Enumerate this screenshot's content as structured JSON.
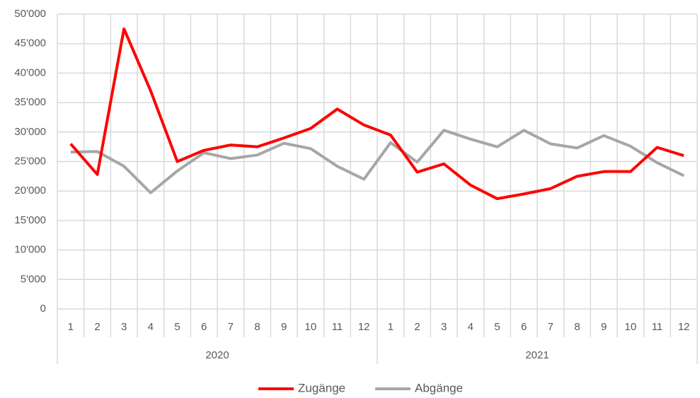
{
  "chart_data": {
    "type": "line",
    "categories": [
      "1",
      "2",
      "3",
      "4",
      "5",
      "6",
      "7",
      "8",
      "9",
      "10",
      "11",
      "12",
      "1",
      "2",
      "3",
      "4",
      "5",
      "6",
      "7",
      "8",
      "9",
      "10",
      "11",
      "12"
    ],
    "category_groups": [
      "2020",
      "2021"
    ],
    "series": [
      {
        "name": "Zugänge",
        "color": "#ff0000",
        "values": [
          28000,
          22800,
          47500,
          37000,
          25000,
          26900,
          27800,
          27500,
          29000,
          30600,
          33900,
          31200,
          29500,
          23200,
          24600,
          21000,
          18700,
          19500,
          20400,
          22500,
          23300,
          23300,
          27400,
          26000
        ]
      },
      {
        "name": "Abgänge",
        "color": "#a6a6a6",
        "values": [
          26600,
          26700,
          24200,
          19700,
          23400,
          26500,
          25500,
          26100,
          28100,
          27200,
          24200,
          22000,
          28200,
          24900,
          30300,
          28800,
          27500,
          30300,
          28000,
          27300,
          29400,
          27600,
          24800,
          22600
        ]
      }
    ],
    "ylim": [
      0,
      50000
    ],
    "yticks": [
      0,
      {
        "value": 5000,
        "label": "5'000"
      },
      {
        "value": 10000,
        "label": "10'000"
      },
      {
        "value": 15000,
        "label": "15'000"
      },
      {
        "value": 20000,
        "label": "20'000"
      },
      {
        "value": 25000,
        "label": "25'000"
      },
      {
        "value": 30000,
        "label": "30'000"
      },
      {
        "value": 35000,
        "label": "35'000"
      },
      {
        "value": 40000,
        "label": "40'000"
      },
      {
        "value": 45000,
        "label": "45'000"
      },
      {
        "value": 50000,
        "label": "50'000"
      }
    ],
    "grid": true,
    "legend": "bottom"
  }
}
